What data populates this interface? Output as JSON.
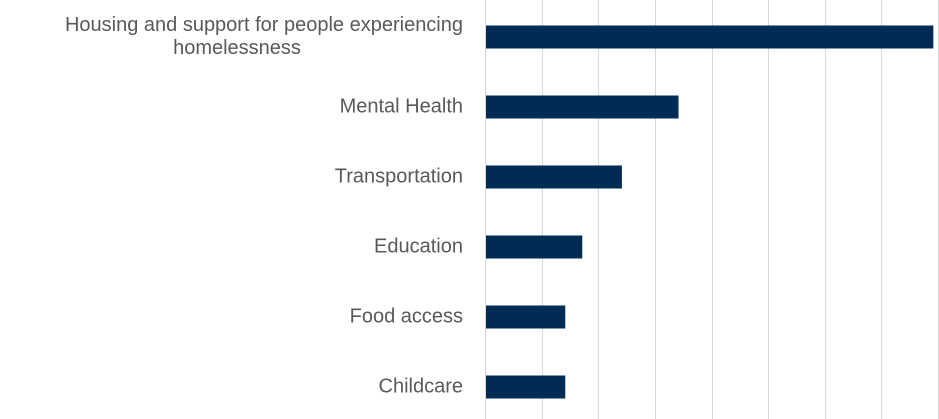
{
  "chart_data": {
    "type": "bar",
    "orientation": "horizontal",
    "title": "",
    "xlabel": "",
    "ylabel": "",
    "categories": [
      "Housing and support for people experiencing homelessness",
      "Mental Health",
      "Transportation",
      "Education",
      "Food access",
      "Childcare"
    ],
    "category_label_lines": [
      [
        "Housing and support for people experiencing",
        "homelessness"
      ],
      [
        "Mental Health"
      ],
      [
        "Transportation"
      ],
      [
        "Education"
      ],
      [
        "Food access"
      ],
      [
        "Childcare"
      ]
    ],
    "values": [
      0.79,
      0.34,
      0.24,
      0.17,
      0.14,
      0.14
    ],
    "xlim": [
      0,
      0.8
    ],
    "x_gridline_step": 0.1,
    "x_tick_labels_shown": false,
    "grid": true,
    "legend": "none",
    "bar_color": "#002B55",
    "gridline_color": "#D9D9D9",
    "label_color": "#595959"
  }
}
